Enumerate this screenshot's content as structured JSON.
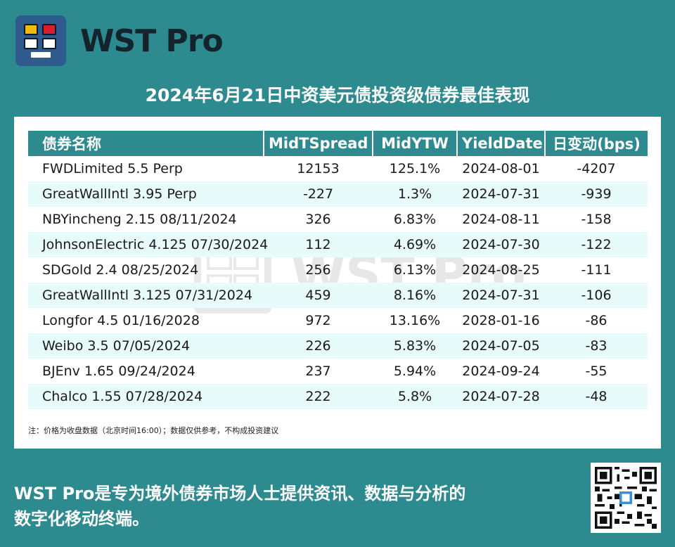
{
  "brand": {
    "name": "WST Pro",
    "logo_icon": "monitor-grid-icon",
    "colors": {
      "yellow": "#f2b90f",
      "red": "#d81e2e",
      "blue": "#2f5a8e"
    }
  },
  "title": "2024年6月21日中资美元债投资级债券最佳表现",
  "table": {
    "headers": [
      "债券名称",
      "MidTSpread",
      "MidYTW",
      "YieldDate",
      "日变动(bps)"
    ],
    "rows": [
      [
        "FWDLimited 5.5 Perp",
        "12153",
        "125.1%",
        "2024-08-01",
        "-4207"
      ],
      [
        "GreatWallIntl 3.95 Perp",
        "-227",
        "1.3%",
        "2024-07-31",
        "-939"
      ],
      [
        "NBYincheng 2.15 08/11/2024",
        "326",
        "6.83%",
        "2024-08-11",
        "-158"
      ],
      [
        "JohnsonElectric 4.125 07/30/2024",
        "112",
        "4.69%",
        "2024-07-30",
        "-122"
      ],
      [
        "SDGold 2.4 08/25/2024",
        "256",
        "6.13%",
        "2024-08-25",
        "-111"
      ],
      [
        "GreatWallIntl 3.125 07/31/2024",
        "459",
        "8.16%",
        "2024-07-31",
        "-106"
      ],
      [
        "Longfor 4.5 01/16/2028",
        "972",
        "13.16%",
        "2028-01-16",
        "-86"
      ],
      [
        "Weibo 3.5 07/05/2024",
        "226",
        "5.83%",
        "2024-07-05",
        "-83"
      ],
      [
        "BJEnv 1.65 09/24/2024",
        "237",
        "5.94%",
        "2024-09-24",
        "-55"
      ],
      [
        "Chalco 1.55 07/28/2024",
        "222",
        "5.8%",
        "2024-07-28",
        "-48"
      ]
    ]
  },
  "watermark": "WST Pro",
  "note": "注：价格为收盘数据（北京时间16:00）；数据仅供参考，不构成投资建议",
  "footer": {
    "line1": "WST Pro是专为境外债券市场人士提供资讯、数据与分析的",
    "line2": "数字化移动终端。"
  },
  "qr_icon": "qr-code-icon",
  "colors": {
    "background": "#2d8a8f",
    "header_row": "#2d8a8f",
    "alt_row": "#e7fbfb"
  }
}
